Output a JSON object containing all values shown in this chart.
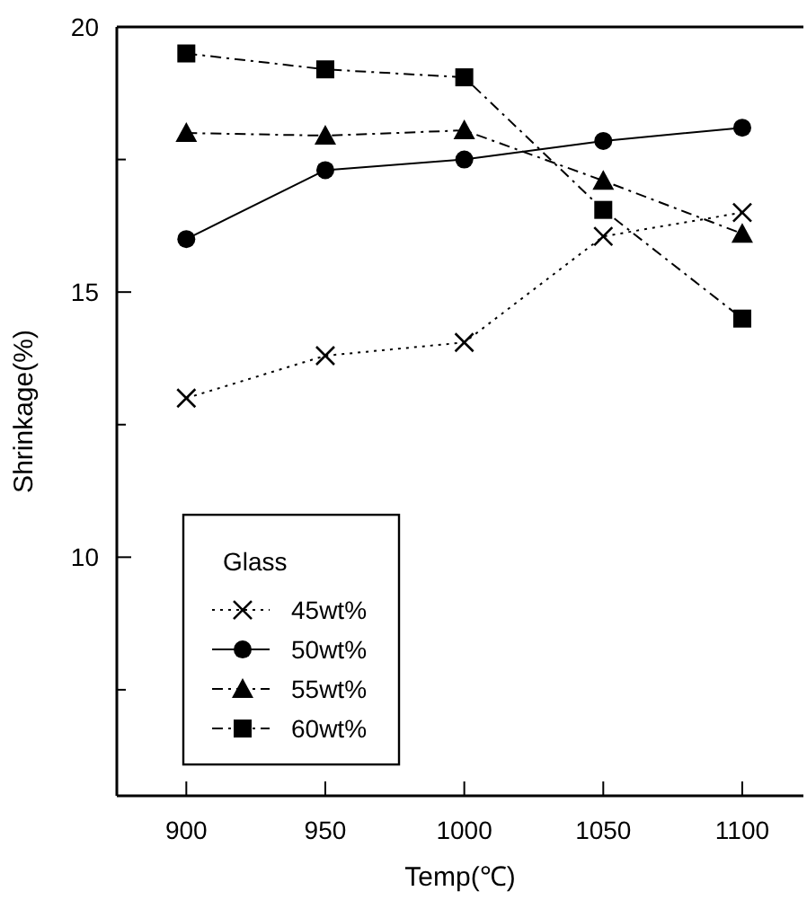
{
  "chart_data": {
    "type": "line",
    "xlabel": "Temp(℃)",
    "ylabel": "Shrinkage(%)",
    "legend_title": "Glass",
    "legend": "bottom left",
    "x": [
      900,
      950,
      1000,
      1050,
      1100
    ],
    "xlim": [
      875,
      1122
    ],
    "xticks": [
      900,
      950,
      1000,
      1050,
      1100
    ],
    "ylim": [
      5.5,
      20
    ],
    "yticks": [
      {
        "value": 7.5,
        "label": null
      },
      10,
      {
        "value": 12.5,
        "label": null
      },
      15,
      {
        "value": 17.5,
        "label": null
      },
      20
    ],
    "series": [
      {
        "name": "45wt%",
        "color": "#000000",
        "marker": "cross",
        "line_style": "dotted",
        "values": [
          13.0,
          13.8,
          14.05,
          16.05,
          16.5
        ]
      },
      {
        "name": "50wt%",
        "color": "#000000",
        "marker": "circle",
        "line_style": "solid",
        "values": [
          16.0,
          17.3,
          17.5,
          17.85,
          18.1
        ]
      },
      {
        "name": "55wt%",
        "color": "#000000",
        "marker": "triangle",
        "line_style": "dashed",
        "values": [
          18.0,
          17.95,
          18.05,
          17.1,
          16.1
        ]
      },
      {
        "name": "60wt%",
        "color": "#000000",
        "marker": "square",
        "line_style": "dashed",
        "values": [
          19.5,
          19.2,
          19.05,
          16.55,
          14.5
        ]
      }
    ]
  }
}
